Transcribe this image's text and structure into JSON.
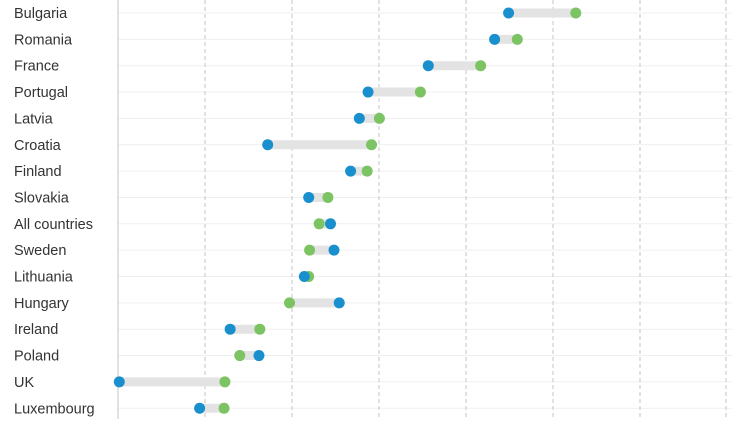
{
  "chart_data": {
    "type": "dumbbell",
    "categories": [
      "Bulgaria",
      "Romania",
      "France",
      "Portugal",
      "Latvia",
      "Croatia",
      "Finland",
      "Slovakia",
      "All countries",
      "Sweden",
      "Lithuania",
      "Hungary",
      "Ireland",
      "Poland",
      "UK",
      "Luxembourg"
    ],
    "series": [
      {
        "color": "#1a8fce",
        "values": [
          44.6,
          43.0,
          35.4,
          28.5,
          27.5,
          17.0,
          26.5,
          21.7,
          24.2,
          24.6,
          21.2,
          25.2,
          12.7,
          16.0,
          0.0,
          9.2
        ]
      },
      {
        "color": "#7cc364",
        "values": [
          52.3,
          45.6,
          41.4,
          34.5,
          29.8,
          28.9,
          28.4,
          23.9,
          22.9,
          21.8,
          21.7,
          19.5,
          16.1,
          13.8,
          12.1,
          12.0
        ]
      }
    ],
    "xlim": [
      -0.15,
      70.2
    ],
    "grid": true,
    "legend": false,
    "colors": {
      "connector": "#e3e3e3",
      "grid": "#c6c6c6",
      "label": "#333333"
    }
  }
}
